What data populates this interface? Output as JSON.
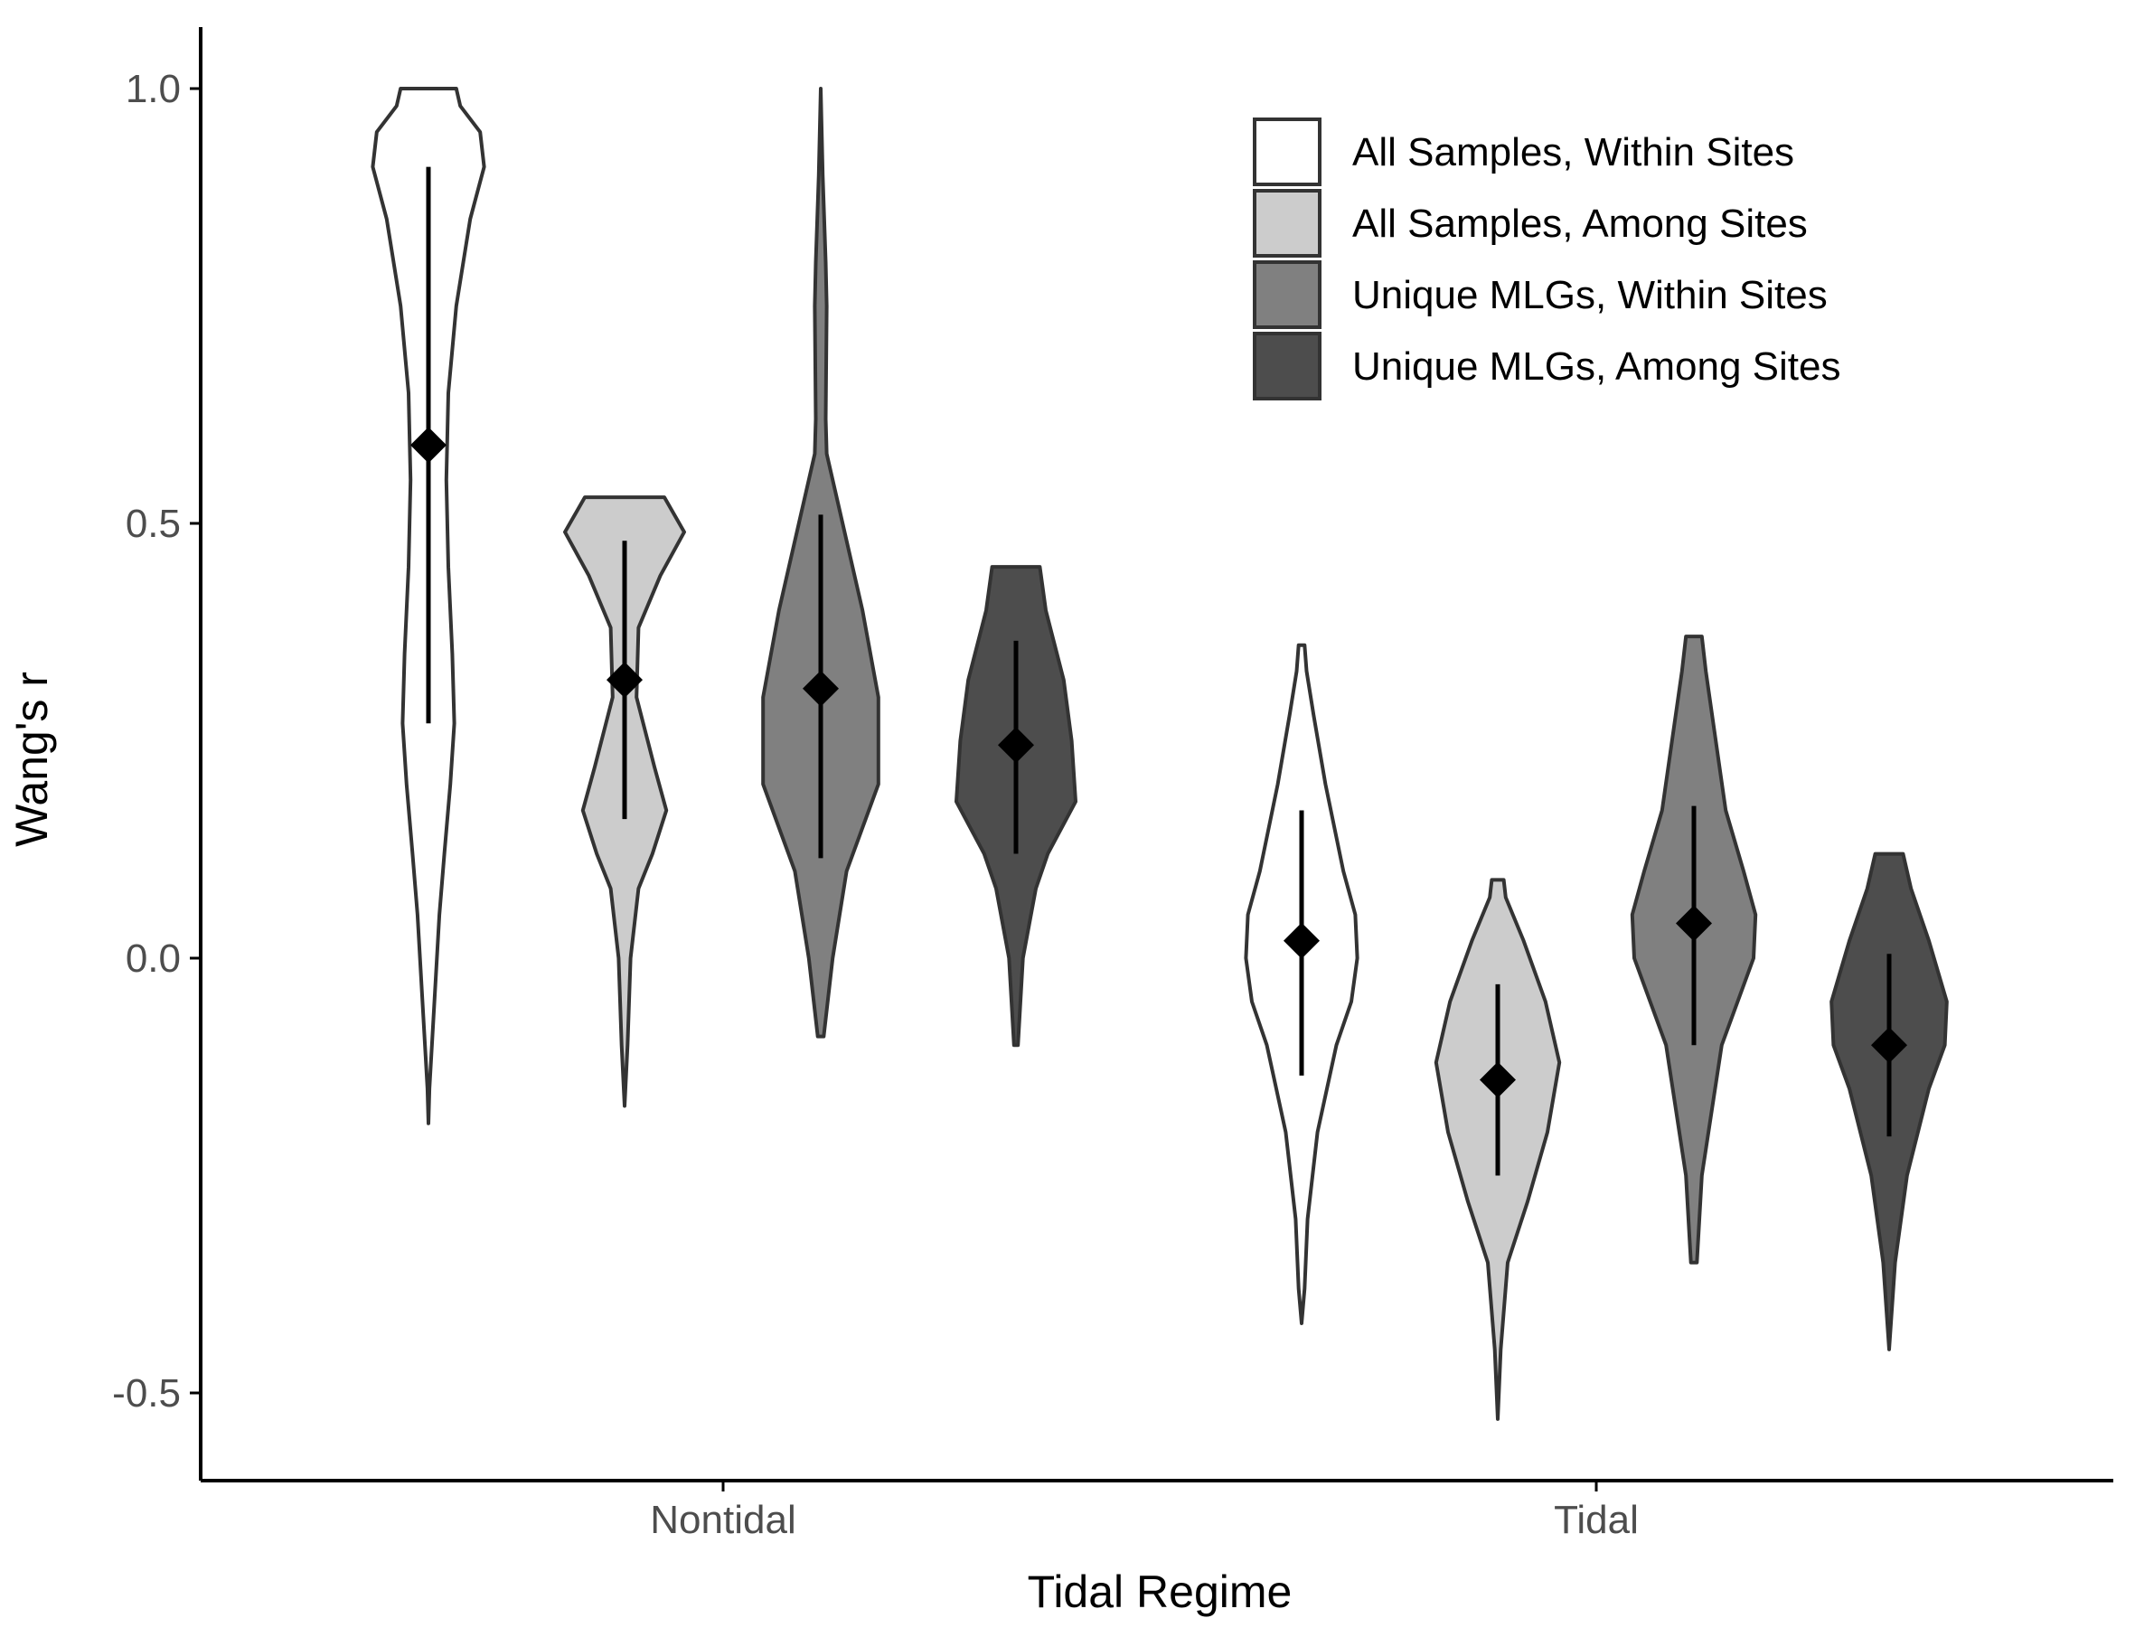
{
  "chart_data": {
    "type": "violin",
    "xlabel": "Tidal Regime",
    "ylabel": "Wang's r",
    "categories": [
      "Nontidal",
      "Tidal"
    ],
    "yticks": [
      "1.0",
      "0.5",
      "0.0",
      "-0.5"
    ],
    "ytick_values": [
      1.0,
      0.5,
      0.0,
      -0.5
    ],
    "ylim": [
      -0.6,
      1.08
    ],
    "grid": false,
    "legend_position": "top-right",
    "series": [
      {
        "name": "All Samples, Within Sites",
        "color": "#ffffff",
        "groups": [
          {
            "category": "Nontidal",
            "mean": 0.59,
            "lower": 0.27,
            "upper": 0.91,
            "min": -0.19,
            "max": 1.0,
            "profile": [
              [
                -0.19,
                0.0
              ],
              [
                -0.15,
                0.01
              ],
              [
                -0.05,
                0.06
              ],
              [
                0.05,
                0.11
              ],
              [
                0.12,
                0.16
              ],
              [
                0.2,
                0.22
              ],
              [
                0.27,
                0.26
              ],
              [
                0.35,
                0.24
              ],
              [
                0.45,
                0.2
              ],
              [
                0.55,
                0.18
              ],
              [
                0.65,
                0.2
              ],
              [
                0.75,
                0.28
              ],
              [
                0.85,
                0.42
              ],
              [
                0.91,
                0.56
              ],
              [
                0.95,
                0.52
              ],
              [
                0.98,
                0.32
              ],
              [
                1.0,
                0.28
              ]
            ]
          },
          {
            "category": "Tidal",
            "mean": 0.02,
            "lower": -0.135,
            "upper": 0.17,
            "min": -0.42,
            "max": 0.36,
            "profile": [
              [
                -0.42,
                0.0
              ],
              [
                -0.38,
                0.03
              ],
              [
                -0.3,
                0.06
              ],
              [
                -0.2,
                0.16
              ],
              [
                -0.1,
                0.35
              ],
              [
                -0.05,
                0.5
              ],
              [
                0.0,
                0.56
              ],
              [
                0.05,
                0.54
              ],
              [
                0.1,
                0.42
              ],
              [
                0.2,
                0.24
              ],
              [
                0.28,
                0.12
              ],
              [
                0.33,
                0.05
              ],
              [
                0.36,
                0.03
              ]
            ]
          }
        ]
      },
      {
        "name": "All Samples, Among Sites",
        "color": "#cccccc",
        "groups": [
          {
            "category": "Nontidal",
            "mean": 0.32,
            "lower": 0.16,
            "upper": 0.48,
            "min": -0.17,
            "max": 0.53,
            "profile": [
              [
                -0.17,
                0.0
              ],
              [
                -0.1,
                0.03
              ],
              [
                0.0,
                0.06
              ],
              [
                0.08,
                0.14
              ],
              [
                0.12,
                0.28
              ],
              [
                0.17,
                0.42
              ],
              [
                0.22,
                0.3
              ],
              [
                0.3,
                0.12
              ],
              [
                0.38,
                0.14
              ],
              [
                0.44,
                0.36
              ],
              [
                0.49,
                0.6
              ],
              [
                0.51,
                0.5
              ],
              [
                0.53,
                0.4
              ]
            ]
          },
          {
            "category": "Tidal",
            "mean": -0.14,
            "lower": -0.25,
            "upper": -0.03,
            "min": -0.53,
            "max": 0.09,
            "profile": [
              [
                -0.53,
                0.0
              ],
              [
                -0.45,
                0.03
              ],
              [
                -0.35,
                0.1
              ],
              [
                -0.28,
                0.3
              ],
              [
                -0.2,
                0.5
              ],
              [
                -0.12,
                0.62
              ],
              [
                -0.05,
                0.48
              ],
              [
                0.02,
                0.26
              ],
              [
                0.07,
                0.08
              ],
              [
                0.09,
                0.06
              ]
            ]
          }
        ]
      },
      {
        "name": "Unique MLGs, Within Sites",
        "color": "#808080",
        "groups": [
          {
            "category": "Nontidal",
            "mean": 0.31,
            "lower": 0.115,
            "upper": 0.51,
            "min": -0.09,
            "max": 1.0,
            "profile": [
              [
                -0.09,
                0.03
              ],
              [
                0.0,
                0.12
              ],
              [
                0.1,
                0.26
              ],
              [
                0.2,
                0.58
              ],
              [
                0.3,
                0.58
              ],
              [
                0.4,
                0.42
              ],
              [
                0.5,
                0.22
              ],
              [
                0.58,
                0.06
              ],
              [
                0.62,
                0.05
              ],
              [
                0.75,
                0.06
              ],
              [
                0.8,
                0.05
              ],
              [
                0.9,
                0.02
              ],
              [
                1.0,
                0.0
              ]
            ]
          },
          {
            "category": "Tidal",
            "mean": 0.04,
            "lower": -0.1,
            "upper": 0.175,
            "min": -0.35,
            "max": 0.37,
            "profile": [
              [
                -0.35,
                0.03
              ],
              [
                -0.25,
                0.08
              ],
              [
                -0.1,
                0.28
              ],
              [
                0.0,
                0.6
              ],
              [
                0.05,
                0.62
              ],
              [
                0.1,
                0.5
              ],
              [
                0.17,
                0.32
              ],
              [
                0.25,
                0.22
              ],
              [
                0.33,
                0.12
              ],
              [
                0.37,
                0.08
              ]
            ]
          }
        ]
      },
      {
        "name": "Unique MLGs, Among Sites",
        "color": "#4d4d4d",
        "groups": [
          {
            "category": "Nontidal",
            "mean": 0.245,
            "lower": 0.12,
            "upper": 0.365,
            "min": -0.1,
            "max": 0.45,
            "profile": [
              [
                -0.1,
                0.02
              ],
              [
                0.0,
                0.07
              ],
              [
                0.08,
                0.2
              ],
              [
                0.12,
                0.32
              ],
              [
                0.18,
                0.6
              ],
              [
                0.25,
                0.56
              ],
              [
                0.32,
                0.48
              ],
              [
                0.4,
                0.3
              ],
              [
                0.45,
                0.24
              ]
            ]
          },
          {
            "category": "Tidal",
            "mean": -0.1,
            "lower": -0.205,
            "upper": 0.005,
            "min": -0.45,
            "max": 0.12,
            "profile": [
              [
                -0.45,
                0.0
              ],
              [
                -0.35,
                0.06
              ],
              [
                -0.25,
                0.18
              ],
              [
                -0.15,
                0.4
              ],
              [
                -0.1,
                0.56
              ],
              [
                -0.05,
                0.58
              ],
              [
                0.02,
                0.4
              ],
              [
                0.08,
                0.22
              ],
              [
                0.12,
                0.14
              ]
            ]
          }
        ]
      }
    ]
  }
}
